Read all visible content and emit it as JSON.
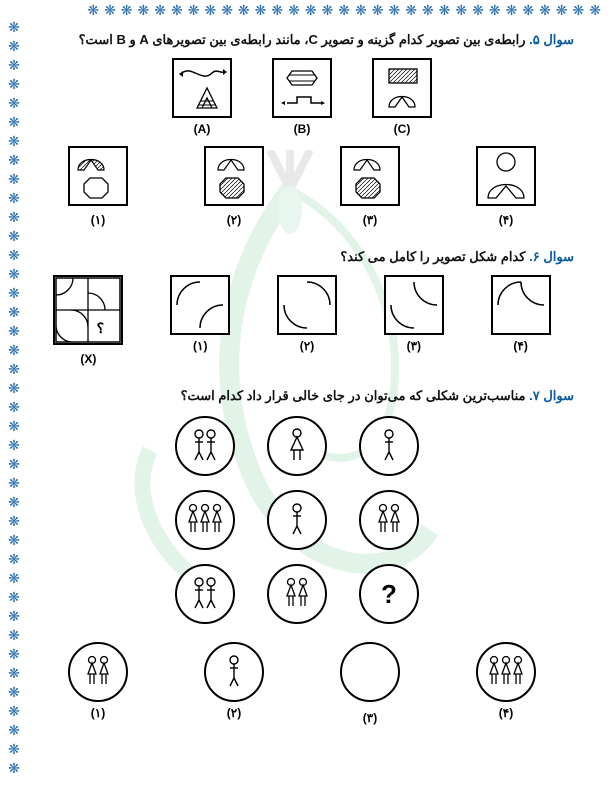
{
  "border": {
    "glyph": "❋",
    "top_count": 31,
    "left_count": 40,
    "color": "#2a6fb0"
  },
  "q5": {
    "num": "سوال ۵.",
    "text": " رابطه‌ی بین تصویر کدام گزینه و تصویر C، مانند رابطه‌ی بین تصویرهای A و B است؟",
    "topLabels": [
      "(A)",
      "(B)",
      "(C)"
    ],
    "optLabels": [
      "(۱)",
      "(۲)",
      "(۳)",
      "(۴)"
    ]
  },
  "q6": {
    "num": "سوال ۶.",
    "text": " کدام شکل تصویر را کامل می کند؟",
    "xLabel": "(X)",
    "optLabels": [
      "(۱)",
      "(۲)",
      "(۳)",
      "(۴)"
    ]
  },
  "q7": {
    "num": "سوال ۷.",
    "text": " مناسب‌ترین شکلی که می‌توان در جای خالی قرار داد کدام است؟",
    "optLabels": [
      "(۱)",
      "(۲)",
      "(۳)",
      "(۴)"
    ],
    "qmark": "?"
  }
}
